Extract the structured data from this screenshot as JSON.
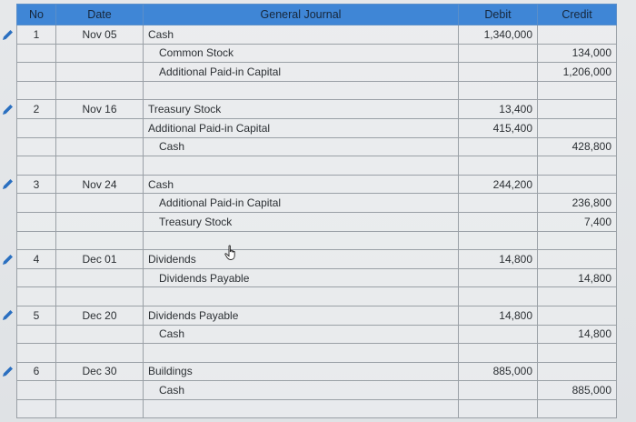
{
  "headers": {
    "no": "No",
    "date": "Date",
    "journal": "General Journal",
    "debit": "Debit",
    "credit": "Credit"
  },
  "rows": [
    {
      "no": "1",
      "date": "Nov 05",
      "account": "Cash",
      "indent": false,
      "debit": "1,340,000",
      "credit": ""
    },
    {
      "no": "",
      "date": "",
      "account": "Common Stock",
      "indent": true,
      "debit": "",
      "credit": "134,000"
    },
    {
      "no": "",
      "date": "",
      "account": "Additional Paid-in Capital",
      "indent": true,
      "debit": "",
      "credit": "1,206,000"
    },
    {
      "no": "",
      "date": "",
      "account": "",
      "indent": false,
      "debit": "",
      "credit": ""
    },
    {
      "no": "2",
      "date": "Nov 16",
      "account": "Treasury Stock",
      "indent": false,
      "debit": "13,400",
      "credit": ""
    },
    {
      "no": "",
      "date": "",
      "account": "Additional Paid-in Capital",
      "indent": false,
      "debit": "415,400",
      "credit": ""
    },
    {
      "no": "",
      "date": "",
      "account": "Cash",
      "indent": true,
      "debit": "",
      "credit": "428,800"
    },
    {
      "no": "",
      "date": "",
      "account": "",
      "indent": false,
      "debit": "",
      "credit": ""
    },
    {
      "no": "3",
      "date": "Nov 24",
      "account": "Cash",
      "indent": false,
      "debit": "244,200",
      "credit": ""
    },
    {
      "no": "",
      "date": "",
      "account": "Additional Paid-in Capital",
      "indent": true,
      "debit": "",
      "credit": "236,800"
    },
    {
      "no": "",
      "date": "",
      "account": "Treasury Stock",
      "indent": true,
      "debit": "",
      "credit": "7,400"
    },
    {
      "no": "",
      "date": "",
      "account": "",
      "indent": false,
      "debit": "",
      "credit": ""
    },
    {
      "no": "4",
      "date": "Dec 01",
      "account": "Dividends",
      "indent": false,
      "debit": "14,800",
      "credit": ""
    },
    {
      "no": "",
      "date": "",
      "account": "Dividends Payable",
      "indent": true,
      "debit": "",
      "credit": "14,800"
    },
    {
      "no": "",
      "date": "",
      "account": "",
      "indent": false,
      "debit": "",
      "credit": ""
    },
    {
      "no": "5",
      "date": "Dec 20",
      "account": "Dividends Payable",
      "indent": false,
      "debit": "14,800",
      "credit": ""
    },
    {
      "no": "",
      "date": "",
      "account": "Cash",
      "indent": true,
      "debit": "",
      "credit": "14,800"
    },
    {
      "no": "",
      "date": "",
      "account": "",
      "indent": false,
      "debit": "",
      "credit": ""
    },
    {
      "no": "6",
      "date": "Dec 30",
      "account": "Buildings",
      "indent": false,
      "debit": "885,000",
      "credit": ""
    },
    {
      "no": "",
      "date": "",
      "account": "Cash",
      "indent": true,
      "debit": "",
      "credit": "885,000"
    },
    {
      "no": "",
      "date": "",
      "account": "",
      "indent": false,
      "debit": "",
      "credit": ""
    }
  ],
  "icons": {
    "edit": "pencil-icon",
    "cursor": "hand-pointer-icon"
  },
  "colors": {
    "header_bg": "#3f86d6",
    "pencil": "#2a6fc0"
  }
}
